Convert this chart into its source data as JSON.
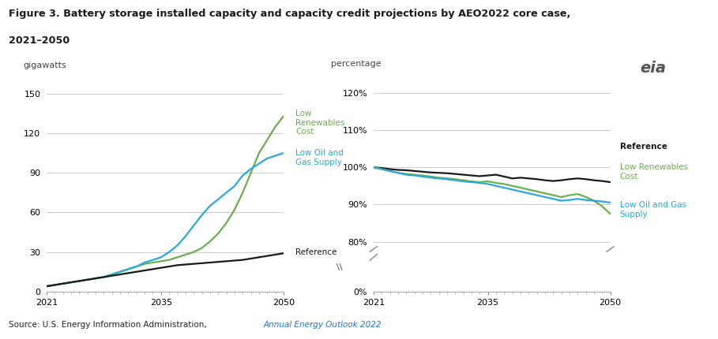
{
  "title_line1": "Figure 3. Battery storage installed capacity and capacity credit projections by AEO2022 core case,",
  "title_line2": "2021–2050",
  "ylabel_left": "gigawatts",
  "ylabel_right": "percentage",
  "source_text": "Source: U.S. Energy Information Administration, ",
  "source_link": "Annual Energy Outlook 2022",
  "years": [
    2021,
    2022,
    2023,
    2024,
    2025,
    2026,
    2027,
    2028,
    2029,
    2030,
    2031,
    2032,
    2033,
    2034,
    2035,
    2036,
    2037,
    2038,
    2039,
    2040,
    2041,
    2042,
    2043,
    2044,
    2045,
    2046,
    2047,
    2048,
    2049,
    2050
  ],
  "left_reference": [
    4,
    5,
    6,
    7,
    8,
    9,
    10,
    11,
    12,
    13,
    14,
    15,
    16,
    17,
    18,
    19,
    20,
    20.5,
    21,
    21.5,
    22,
    22.5,
    23,
    23.5,
    24,
    25,
    26,
    27,
    28,
    29
  ],
  "left_low_renew": [
    4,
    5,
    6,
    7,
    8,
    9,
    10,
    11,
    13,
    15,
    17,
    19,
    21,
    22,
    23,
    24,
    26,
    28,
    30,
    33,
    38,
    44,
    52,
    62,
    75,
    90,
    105,
    115,
    125,
    133
  ],
  "left_low_oil_gas": [
    4,
    5,
    6,
    7,
    8,
    9,
    10,
    11,
    13,
    15,
    17,
    19,
    22,
    24,
    26,
    30,
    35,
    42,
    50,
    58,
    65,
    70,
    75,
    80,
    88,
    93,
    97,
    101,
    103,
    105
  ],
  "right_reference": [
    100,
    99.8,
    99.5,
    99.3,
    99.2,
    99.0,
    98.8,
    98.6,
    98.5,
    98.4,
    98.2,
    98.0,
    97.8,
    97.6,
    97.8,
    98.0,
    97.5,
    97.0,
    97.2,
    97.0,
    96.8,
    96.5,
    96.3,
    96.5,
    96.8,
    97.0,
    96.8,
    96.5,
    96.3,
    96.0
  ],
  "right_low_renew": [
    100,
    99.5,
    99.0,
    98.5,
    98.2,
    98.0,
    97.8,
    97.5,
    97.2,
    97.0,
    96.8,
    96.5,
    96.2,
    96.0,
    96.2,
    95.8,
    95.5,
    95.0,
    94.5,
    94.0,
    93.5,
    93.0,
    92.5,
    92.0,
    92.5,
    92.8,
    92.0,
    91.0,
    89.5,
    87.5
  ],
  "right_low_oil_gas": [
    100,
    99.5,
    99.0,
    98.5,
    98.0,
    97.8,
    97.5,
    97.2,
    97.0,
    96.8,
    96.5,
    96.2,
    96.0,
    95.8,
    95.5,
    95.0,
    94.5,
    94.0,
    93.5,
    93.0,
    92.5,
    92.0,
    91.5,
    91.0,
    91.2,
    91.5,
    91.2,
    91.0,
    90.8,
    90.5
  ],
  "color_reference": "#1a1a1a",
  "color_low_renew": "#6ab04c",
  "color_low_oil_gas": "#29a8e0",
  "left_yticks": [
    0,
    30,
    60,
    90,
    120,
    150
  ],
  "left_ylim": [
    0,
    162
  ],
  "xticks_major": [
    2021,
    2035,
    2050
  ],
  "bg_color": "#ffffff",
  "grid_color": "#cccccc",
  "line_width": 1.6
}
